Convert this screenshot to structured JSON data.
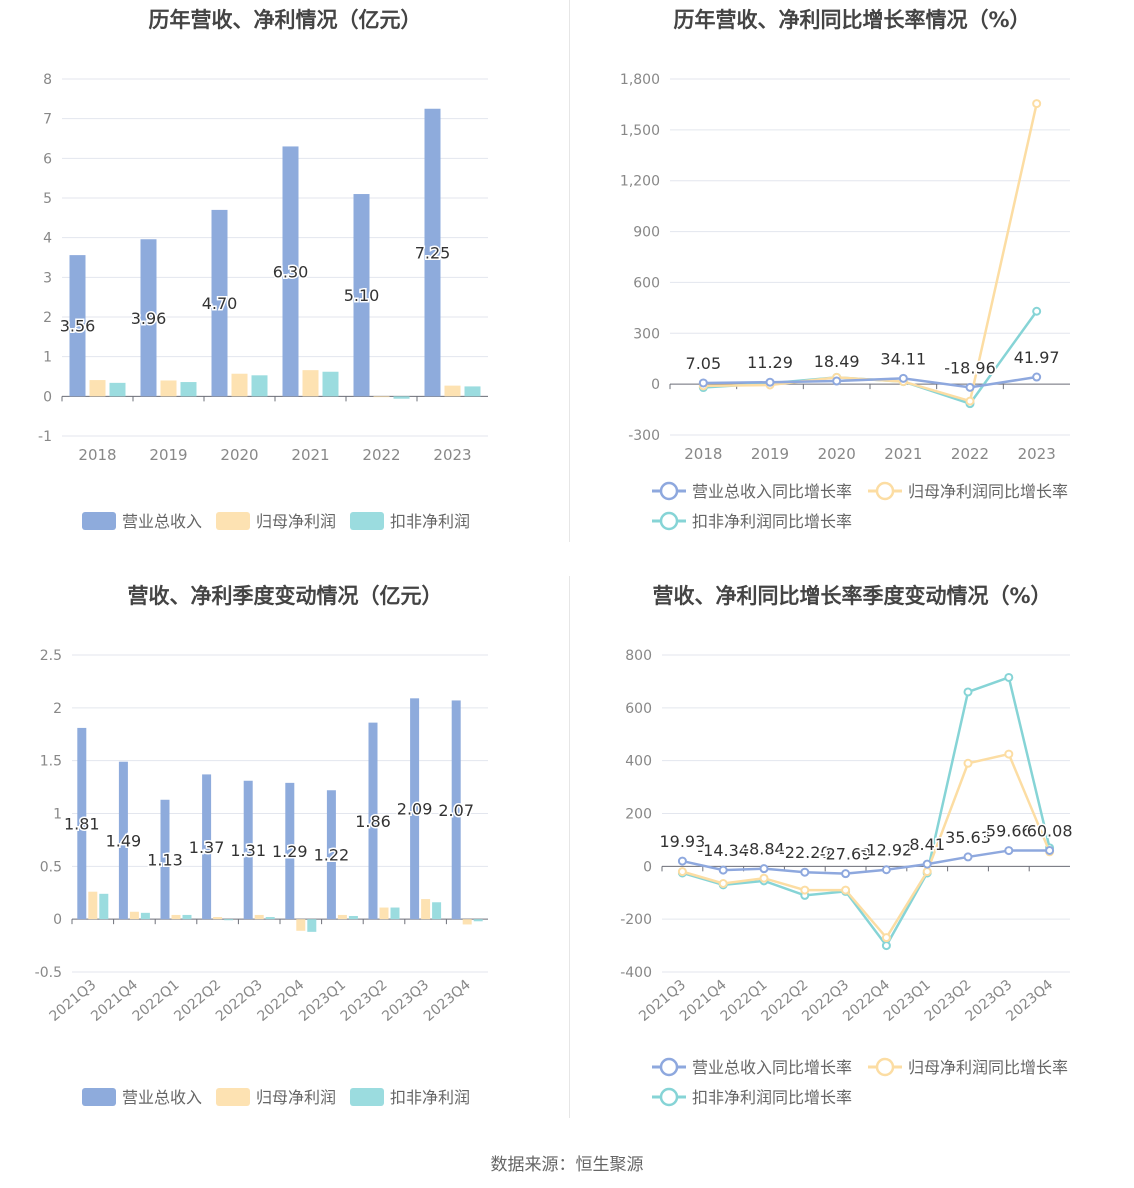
{
  "source_note": "数据来源：恒生聚源",
  "colors": {
    "revenue": "#8eabdc",
    "net_profit": "#fde2b2",
    "deducted_profit": "#9bdcdf",
    "revenue_line": "#8ea8de",
    "net_line": "#fcdda3",
    "deducted_line": "#86d4d6"
  },
  "chart_data": [
    {
      "type": "bar",
      "title": "历年营收、净利情况（亿元）",
      "categories": [
        "2018",
        "2019",
        "2020",
        "2021",
        "2022",
        "2023"
      ],
      "ylim": [
        -1,
        8
      ],
      "yticks": [
        "8",
        "7",
        "6",
        "5",
        "4",
        "3",
        "2",
        "1",
        "0",
        "-1"
      ],
      "series": [
        {
          "name": "营业总收入",
          "values": [
            3.56,
            3.96,
            4.7,
            6.3,
            5.1,
            7.25
          ],
          "labels": [
            "3.56",
            "3.96",
            "4.70",
            "6.30",
            "5.10",
            "7.25"
          ]
        },
        {
          "name": "归母净利润",
          "values": [
            0.41,
            0.4,
            0.57,
            0.66,
            -0.02,
            0.27
          ]
        },
        {
          "name": "扣非净利润",
          "values": [
            0.34,
            0.36,
            0.53,
            0.62,
            -0.06,
            0.25
          ]
        }
      ],
      "legend": "bottom"
    },
    {
      "type": "line",
      "title": "历年营收、净利同比增长率情况（%）",
      "categories": [
        "2018",
        "2019",
        "2020",
        "2021",
        "2022",
        "2023"
      ],
      "ylim": [
        -300,
        1800
      ],
      "yticks": [
        "1,800",
        "1,500",
        "1,200",
        "900",
        "600",
        "300",
        "0",
        "-300"
      ],
      "series": [
        {
          "name": "营业总收入同比增长率",
          "values": [
            7.05,
            11.29,
            18.49,
            34.11,
            -18.96,
            41.97
          ],
          "labels": [
            "7.05",
            "11.29",
            "18.49",
            "34.11",
            "-18.96",
            "41.97"
          ]
        },
        {
          "name": "归母净利润同比增长率",
          "values": [
            -10,
            -5,
            40,
            15,
            -100,
            1655
          ]
        },
        {
          "name": "扣非净利润同比增长率",
          "values": [
            -20,
            5,
            40,
            15,
            -115,
            430
          ]
        }
      ],
      "legend": "bottom"
    },
    {
      "type": "bar",
      "title": "营收、净利季度变动情况（亿元）",
      "categories": [
        "2021Q3",
        "2021Q4",
        "2022Q1",
        "2022Q2",
        "2022Q3",
        "2022Q4",
        "2023Q1",
        "2023Q2",
        "2023Q3",
        "2023Q4"
      ],
      "ylim": [
        -0.5,
        2.5
      ],
      "yticks": [
        "2.5",
        "2",
        "1.5",
        "1",
        "0.5",
        "0",
        "-0.5"
      ],
      "series": [
        {
          "name": "营业总收入",
          "values": [
            1.81,
            1.49,
            1.13,
            1.37,
            1.31,
            1.29,
            1.22,
            1.86,
            2.09,
            2.07
          ],
          "labels": [
            "1.81",
            "1.49",
            "1.13",
            "1.37",
            "1.31",
            "1.29",
            "1.22",
            "1.86",
            "2.09",
            "2.07"
          ]
        },
        {
          "name": "归母净利润",
          "values": [
            0.26,
            0.07,
            0.04,
            0.02,
            0.04,
            -0.11,
            0.04,
            0.11,
            0.19,
            -0.05
          ]
        },
        {
          "name": "扣非净利润",
          "values": [
            0.24,
            0.06,
            0.04,
            -0.01,
            0.02,
            -0.12,
            0.03,
            0.11,
            0.16,
            -0.02
          ]
        }
      ],
      "legend": "bottom"
    },
    {
      "type": "line",
      "title": "营收、净利同比增长率季度变动情况（%）",
      "categories": [
        "2021Q3",
        "2021Q4",
        "2022Q1",
        "2022Q2",
        "2022Q3",
        "2022Q4",
        "2023Q1",
        "2023Q2",
        "2023Q3",
        "2023Q4"
      ],
      "ylim": [
        -400,
        800
      ],
      "yticks": [
        "800",
        "600",
        "400",
        "200",
        "0",
        "-200",
        "-400"
      ],
      "series": [
        {
          "name": "营业总收入同比增长率",
          "values": [
            19.93,
            -14.34,
            -8.84,
            -22.2,
            -27.69,
            -12.92,
            8.41,
            35.63,
            59.66,
            60.08
          ],
          "labels": [
            "19.93",
            "-14.34",
            "-8.84",
            "-22.20",
            "-27.69",
            "-12.92",
            "8.41",
            "35.63",
            "59.66",
            "60.08"
          ]
        },
        {
          "name": "归母净利润同比增长率",
          "values": [
            -20,
            -65,
            -45,
            -90,
            -90,
            -270,
            -20,
            390,
            425,
            55
          ]
        },
        {
          "name": "扣非净利润同比增长率",
          "values": [
            -25,
            -70,
            -55,
            -110,
            -95,
            -300,
            -25,
            660,
            715,
            70
          ]
        }
      ],
      "legend": "bottom"
    }
  ]
}
